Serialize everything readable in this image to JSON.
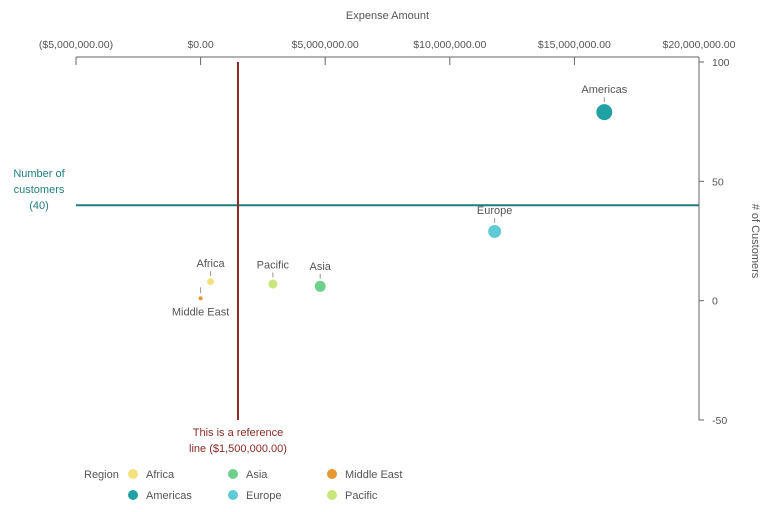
{
  "chart_data": {
    "type": "scatter",
    "x_axis": {
      "title": "Expense Amount",
      "min": -5000000,
      "max": 20000000,
      "ticks": [
        -5000000,
        0,
        5000000,
        10000000,
        15000000,
        20000000
      ],
      "tick_labels": [
        "($5,000,000.00)",
        "$0.00",
        "$5,000,000.00",
        "$10,000,000.00",
        "$15,000,000.00",
        "$20,000,000.00"
      ],
      "position": "top"
    },
    "y_axis": {
      "title": "# of Customers",
      "min": -50,
      "max": 100,
      "ticks": [
        -50,
        0,
        50,
        100
      ],
      "tick_labels": [
        "-50",
        "0",
        "50",
        "100"
      ],
      "position": "right"
    },
    "reference_lines": [
      {
        "axis": "y",
        "value": 40,
        "label_lines": [
          "Number of",
          "customers",
          "(40)"
        ],
        "color": "#217e80"
      },
      {
        "axis": "x",
        "value": 1500000,
        "label_lines": [
          "This is a reference",
          "line ($1,500,000.00)"
        ],
        "color": "#8b2a24"
      }
    ],
    "points": [
      {
        "name": "Americas",
        "x": 16200000,
        "y": 79,
        "size": 8,
        "color": "#20a2a4",
        "label": "Americas",
        "label_pos": "above"
      },
      {
        "name": "Europe",
        "x": 11800000,
        "y": 29,
        "size": 6.5,
        "color": "#5dcad6",
        "label": "Europe",
        "label_pos": "above"
      },
      {
        "name": "Asia",
        "x": 4800000,
        "y": 6,
        "size": 5.5,
        "color": "#6fd08c",
        "label": "Asia",
        "label_pos": "above"
      },
      {
        "name": "Pacific",
        "x": 2900000,
        "y": 7,
        "size": 4.5,
        "color": "#c8e67a",
        "label": "Pacific",
        "label_pos": "above"
      },
      {
        "name": "Africa",
        "x": 400000,
        "y": 8,
        "size": 3.5,
        "color": "#f4e27e",
        "label": "Africa",
        "label_pos": "above"
      },
      {
        "name": "Middle East",
        "x": 0,
        "y": 1,
        "size": 2,
        "color": "#e8962e",
        "label": "Middle East",
        "label_pos": "below"
      }
    ],
    "legend": {
      "title": "Region",
      "placement": "bottom-left",
      "items": [
        {
          "name": "Africa",
          "color": "#f4e27e"
        },
        {
          "name": "Asia",
          "color": "#6fd08c"
        },
        {
          "name": "Middle East",
          "color": "#e8962e"
        },
        {
          "name": "Americas",
          "color": "#20a2a4"
        },
        {
          "name": "Europe",
          "color": "#5dcad6"
        },
        {
          "name": "Pacific",
          "color": "#c8e67a"
        }
      ]
    }
  }
}
